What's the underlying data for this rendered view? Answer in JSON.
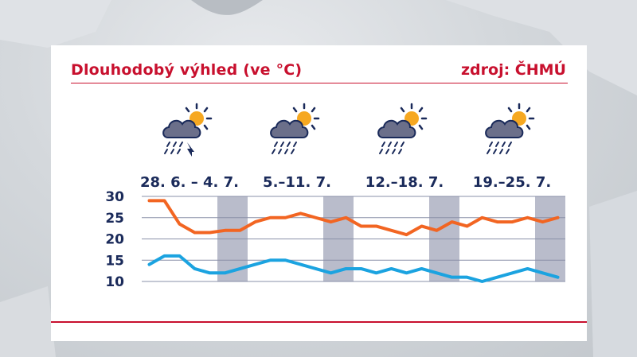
{
  "title": "Dlouhodobý výhled (ve °C)",
  "source": "zdroj: ČHMÚ",
  "colors": {
    "accent": "#c8102e",
    "text": "#1a2a5a",
    "max_series": "#f26522",
    "min_series": "#1ba3e0",
    "weekend_band": "#b9bccb",
    "grid": "#8a90a8"
  },
  "weeks": [
    {
      "label": "28. 6. – 4. 7.",
      "icon": "cloud-sun-rain-storm-icon"
    },
    {
      "label": "5.–11. 7.",
      "icon": "cloud-sun-rain-icon"
    },
    {
      "label": "12.–18. 7.",
      "icon": "cloud-sun-rain-icon"
    },
    {
      "label": "19.–25. 7.",
      "icon": "cloud-sun-rain-icon"
    }
  ],
  "chart_data": {
    "type": "line",
    "ylim": [
      10,
      30
    ],
    "yticks": [
      30,
      25,
      20,
      15,
      10
    ],
    "grid": true,
    "weekend_day_indices": [
      [
        5,
        6
      ],
      [
        12,
        13
      ],
      [
        19,
        20
      ],
      [
        26,
        27
      ]
    ],
    "x": [
      "28.6.",
      "29.6.",
      "30.6.",
      "1.7.",
      "2.7.",
      "3.7.",
      "4.7.",
      "5.7.",
      "6.7.",
      "7.7.",
      "8.7.",
      "9.7.",
      "10.7.",
      "11.7.",
      "12.7.",
      "13.7.",
      "14.7.",
      "15.7.",
      "16.7.",
      "17.7.",
      "18.7.",
      "19.7.",
      "20.7.",
      "21.7.",
      "22.7.",
      "23.7.",
      "24.7.",
      "25.7."
    ],
    "series": [
      {
        "values": [
          29,
          29,
          23.5,
          21.5,
          21.5,
          22,
          22,
          24,
          25,
          25,
          26,
          25,
          24,
          25,
          23,
          23,
          22,
          21,
          23,
          22,
          24,
          23,
          25,
          24,
          24,
          25,
          24,
          25
        ]
      },
      {
        "values": [
          14,
          16,
          16,
          13,
          12,
          12,
          13,
          14,
          15,
          15,
          14,
          13,
          12,
          13,
          13,
          12,
          13,
          12,
          13,
          12,
          11,
          11,
          10,
          11,
          12,
          13,
          12,
          11
        ]
      }
    ]
  }
}
